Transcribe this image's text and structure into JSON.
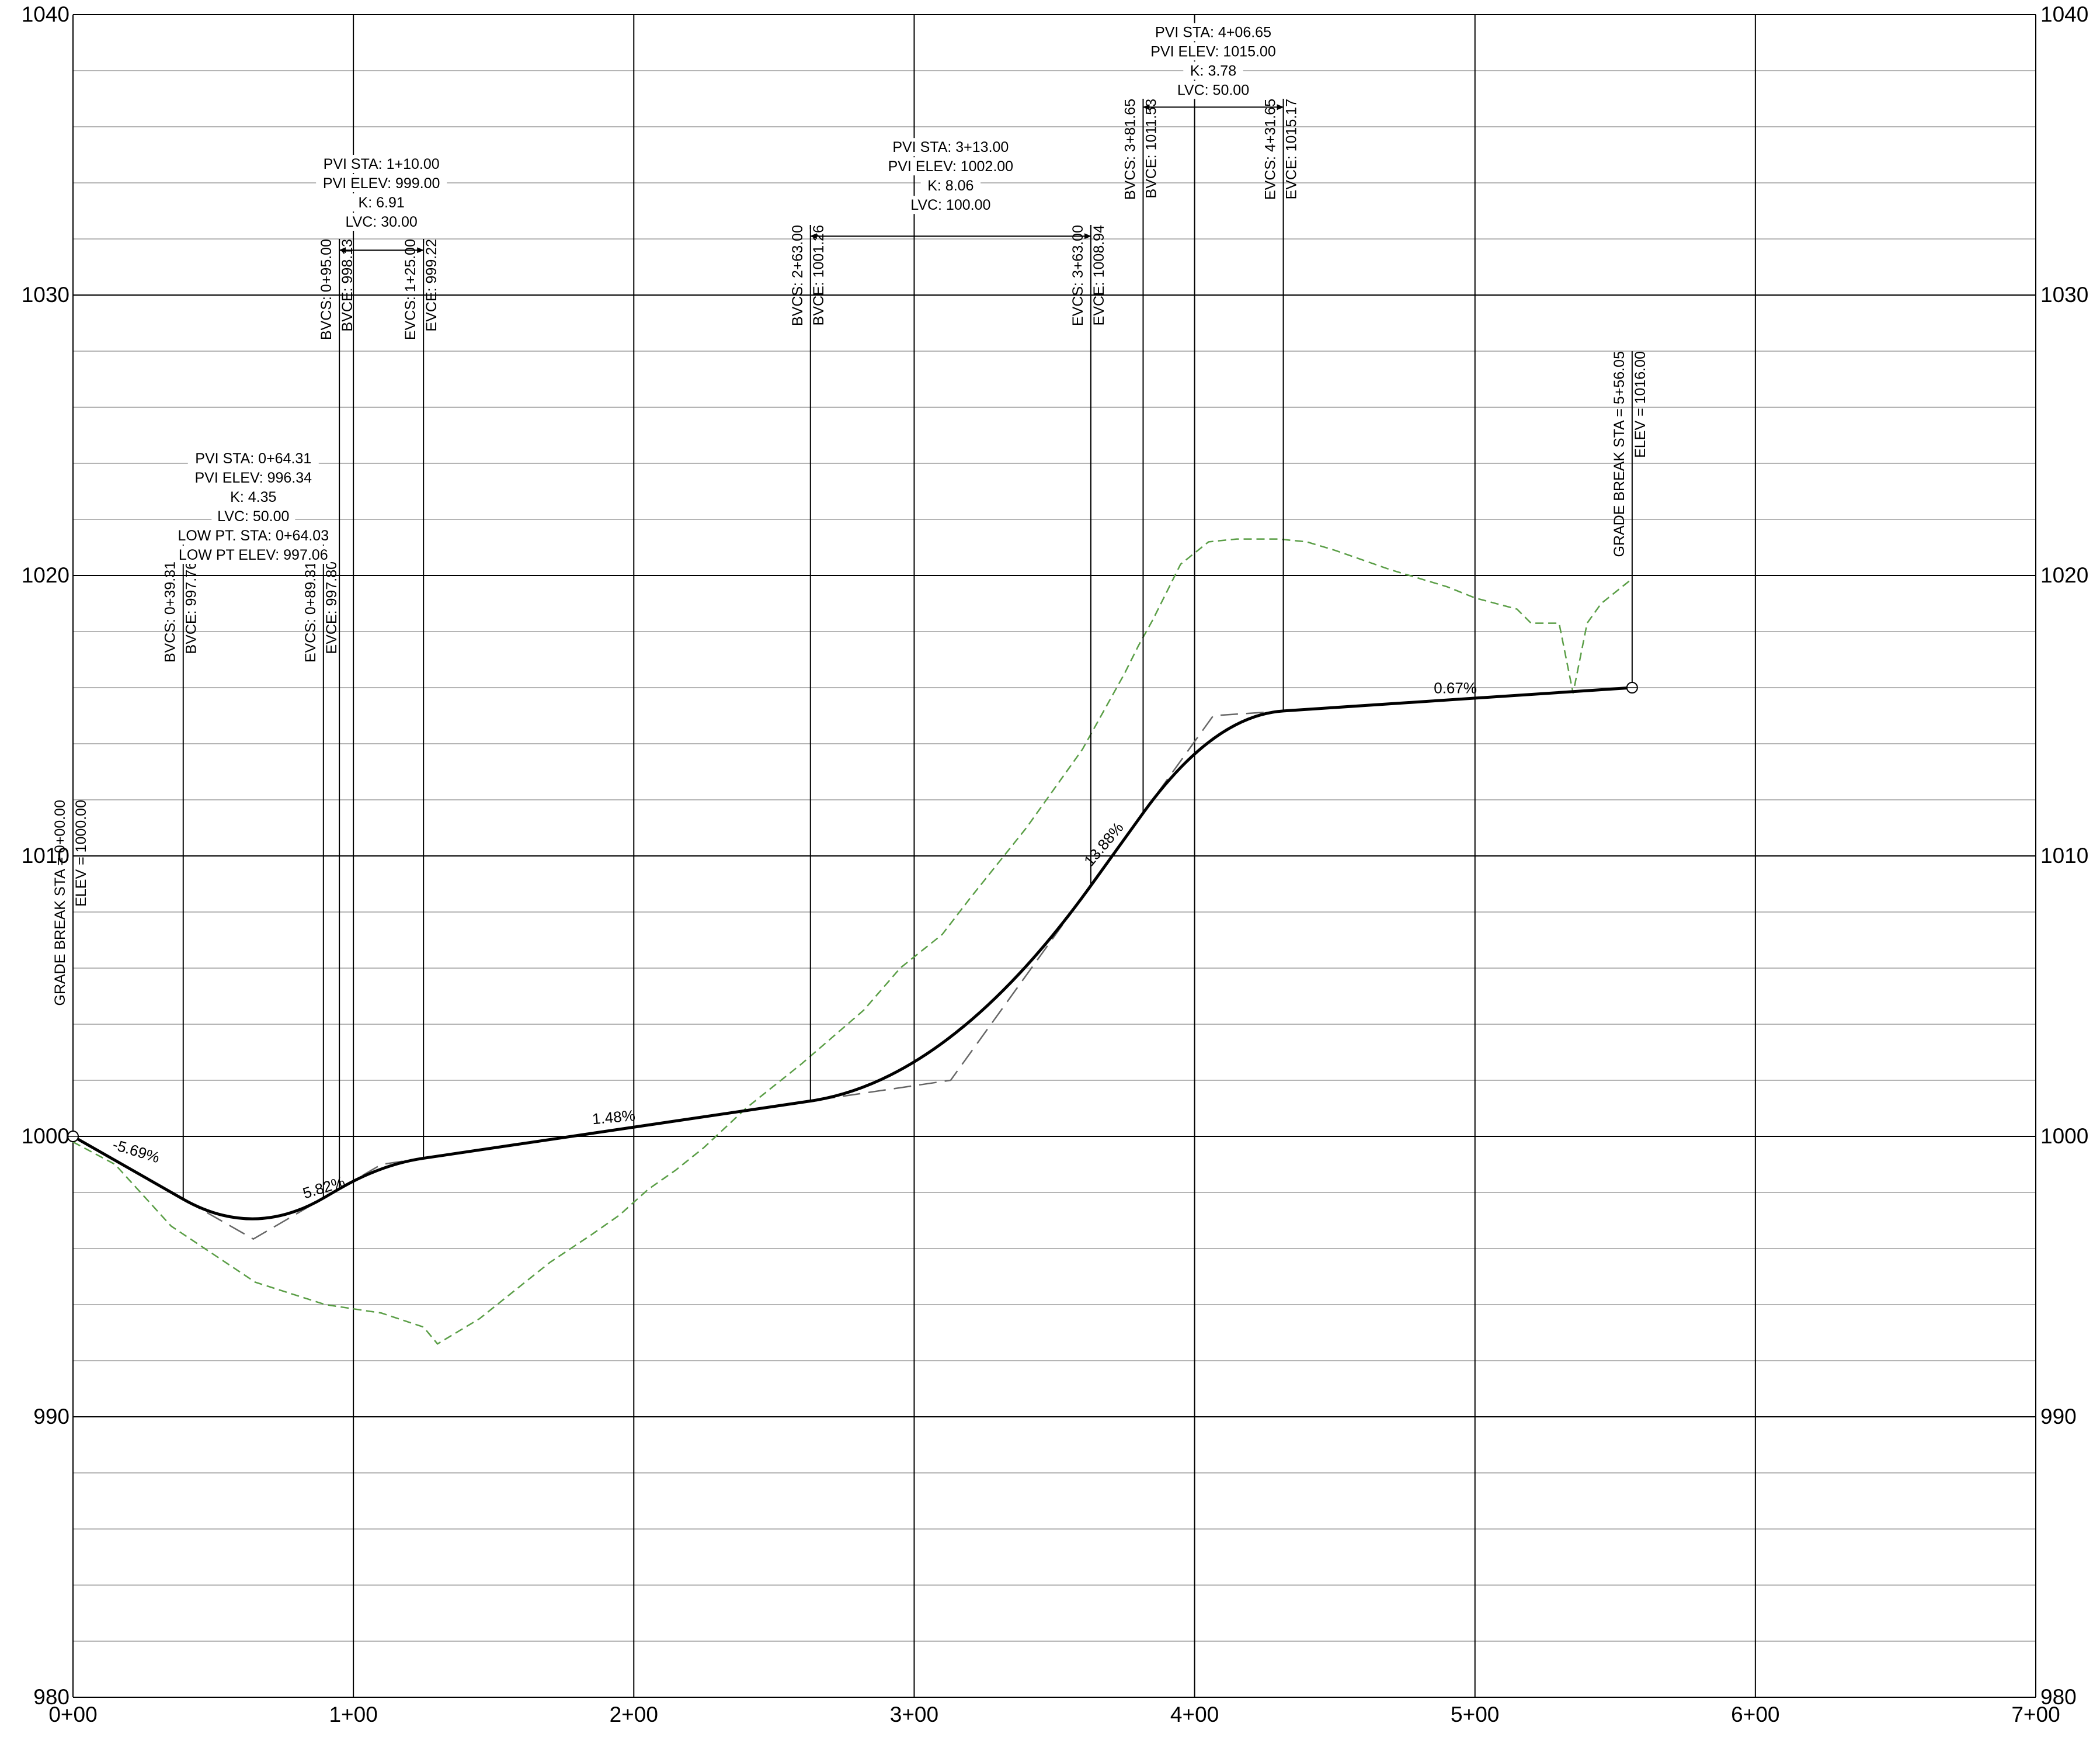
{
  "chart_data": {
    "type": "line",
    "title": "",
    "xlabel": "",
    "ylabel": "",
    "xlim": [
      0,
      700
    ],
    "ylim": [
      980,
      1040
    ],
    "grid": true,
    "x_ticks": [
      {
        "value": 0,
        "label": "0+00"
      },
      {
        "value": 100,
        "label": "1+00"
      },
      {
        "value": 200,
        "label": "2+00"
      },
      {
        "value": 300,
        "label": "3+00"
      },
      {
        "value": 400,
        "label": "4+00"
      },
      {
        "value": 500,
        "label": "5+00"
      },
      {
        "value": 600,
        "label": "6+00"
      },
      {
        "value": 700,
        "label": "7+00"
      }
    ],
    "y_ticks_left": [
      {
        "value": 980,
        "label": "980"
      },
      {
        "value": 990,
        "label": "990"
      },
      {
        "value": 1000,
        "label": "1000"
      },
      {
        "value": 1010,
        "label": "1010"
      },
      {
        "value": 1020,
        "label": "1020"
      },
      {
        "value": 1030,
        "label": "1030"
      },
      {
        "value": 1040,
        "label": "1040"
      }
    ],
    "y_ticks_right": [
      {
        "value": 980,
        "label": "980"
      },
      {
        "value": 990,
        "label": "990"
      },
      {
        "value": 1000,
        "label": "1000"
      },
      {
        "value": 1010,
        "label": "1010"
      },
      {
        "value": 1020,
        "label": "1020"
      },
      {
        "value": 1030,
        "label": "1030"
      },
      {
        "value": 1040,
        "label": "1040"
      }
    ],
    "minor_grid_step": 2,
    "colors": {
      "proposed": "#000000",
      "tangent": "#666666",
      "existing": "#5a9e46",
      "grid_major": "#000000",
      "grid_minor": "#b5b5b5"
    },
    "series": [
      {
        "key": "existing",
        "style": "dashed",
        "x": [
          0,
          15,
          35,
          65,
          90,
          110,
          125,
          130,
          145,
          155,
          170,
          185,
          195,
          205,
          215,
          225,
          240,
          260,
          282,
          295,
          310,
          320,
          340,
          360,
          375,
          380,
          385,
          395,
          405,
          415,
          420,
          430,
          440,
          450,
          470,
          490,
          500,
          515,
          520,
          530,
          535,
          540,
          545,
          555
        ],
        "y": [
          999.8,
          999.0,
          996.8,
          994.8,
          994.0,
          993.7,
          993.2,
          992.6,
          993.5,
          994.3,
          995.5,
          996.5,
          997.2,
          998.1,
          998.8,
          999.6,
          1001.0,
          1002.6,
          1004.5,
          1006.0,
          1007.2,
          1008.5,
          1011.0,
          1013.8,
          1016.5,
          1017.5,
          1018.4,
          1020.4,
          1021.2,
          1021.3,
          1021.3,
          1021.3,
          1021.2,
          1020.9,
          1020.2,
          1019.6,
          1019.2,
          1018.8,
          1018.3,
          1018.3,
          1015.8,
          1018.3,
          1019.0,
          1019.8
        ]
      },
      {
        "key": "tangent",
        "style": "dashed",
        "x": [
          0,
          64.31,
          110,
          313,
          406.65,
          556.05
        ],
        "y": [
          1000.0,
          996.34,
          999.0,
          1002.0,
          1015.0,
          1016.0
        ]
      },
      {
        "key": "proposed",
        "style": "solid",
        "segments": [
          {
            "kind": "line",
            "x0": 0,
            "y0": 1000.0,
            "x1": 39.31,
            "y1": 997.76
          },
          {
            "kind": "curve",
            "x0": 39.31,
            "y0": 997.76,
            "px": 64.31,
            "py": 996.34,
            "x1": 89.31,
            "y1": 997.8
          },
          {
            "kind": "line",
            "x0": 89.31,
            "y0": 997.8,
            "x1": 95.0,
            "y1": 998.13
          },
          {
            "kind": "curve",
            "x0": 95.0,
            "y0": 998.13,
            "px": 110.0,
            "py": 999.0,
            "x1": 125.0,
            "y1": 999.22
          },
          {
            "kind": "line",
            "x0": 125.0,
            "y0": 999.22,
            "x1": 263.0,
            "y1": 1001.26
          },
          {
            "kind": "curve",
            "x0": 263.0,
            "y0": 1001.26,
            "px": 313.0,
            "py": 1002.0,
            "x1": 363.0,
            "y1": 1008.94
          },
          {
            "kind": "line",
            "x0": 363.0,
            "y0": 1008.94,
            "x1": 381.65,
            "y1": 1011.53
          },
          {
            "kind": "curve",
            "x0": 381.65,
            "y0": 1011.53,
            "px": 406.65,
            "py": 1015.0,
            "x1": 431.65,
            "y1": 1015.17
          },
          {
            "kind": "line",
            "x0": 431.65,
            "y0": 1015.17,
            "x1": 556.05,
            "y1": 1016.0
          }
        ]
      }
    ],
    "grade_labels": [
      {
        "text": "-5.69%",
        "x": 22,
        "y": 999.3,
        "angle": 17
      },
      {
        "text": "5.82%",
        "x": 90,
        "y": 998.0,
        "angle": -17
      },
      {
        "text": "1.48%",
        "x": 193,
        "y": 1000.5,
        "angle": -5
      },
      {
        "text": "13.88%",
        "x": 369,
        "y": 1010.3,
        "angle": -50
      },
      {
        "text": "0.67%",
        "x": 493,
        "y": 1015.8,
        "angle": 0
      }
    ],
    "grade_breaks": [
      {
        "x": 0,
        "y": 1000.0,
        "lines": [
          "GRADE BREAK STA = 0+00.00",
          "ELEV =  1000.00"
        ],
        "top": 1012.0
      },
      {
        "x": 556.05,
        "y": 1016.0,
        "lines": [
          "GRADE BREAK STA = 5+56.05",
          "ELEV =  1016.00"
        ],
        "top": 1028.0
      }
    ],
    "vertical_curves": [
      {
        "pvi": [
          "PVI STA: 0+64.31",
          "PVI ELEV: 996.34",
          "K: 4.35",
          "LVC: 50.00",
          "LOW PT. STA: 0+64.03",
          "LOW PT ELEV: 997.06"
        ],
        "pvi_x": 64.31,
        "pvi_label_y": 1024.0,
        "bvc": {
          "x": 39.31,
          "y": 997.76,
          "lines": [
            "BVCS: 0+39.31",
            "BVCE: 997.76"
          ],
          "top": 1020.5
        },
        "evc": {
          "x": 89.31,
          "y": 997.8,
          "lines": [
            "EVCS: 0+89.31",
            "EVCE: 997.80"
          ],
          "top": 1020.5
        },
        "dim_y": 1021.2
      },
      {
        "pvi": [
          "PVI STA: 1+10.00",
          "PVI ELEV: 999.00",
          "K: 6.91",
          "LVC: 30.00"
        ],
        "pvi_x": 110,
        "pvi_label_y": 1034.5,
        "bvc": {
          "x": 95.0,
          "y": 998.13,
          "lines": [
            "BVCS: 0+95.00",
            "BVCE: 998.13"
          ],
          "top": 1032.0
        },
        "evc": {
          "x": 125.0,
          "y": 999.22,
          "lines": [
            "EVCS: 1+25.00",
            "EVCE: 999.22"
          ],
          "top": 1032.0
        },
        "dim_y": 1031.6
      },
      {
        "pvi": [
          "PVI STA: 3+13.00",
          "PVI ELEV: 1002.00",
          "K: 8.06",
          "LVC: 100.00"
        ],
        "pvi_x": 313,
        "pvi_label_y": 1035.1,
        "bvc": {
          "x": 263.0,
          "y": 1001.26,
          "lines": [
            "BVCS: 2+63.00",
            "BVCE: 1001.26"
          ],
          "top": 1032.5
        },
        "evc": {
          "x": 363.0,
          "y": 1008.94,
          "lines": [
            "EVCS: 3+63.00",
            "EVCE: 1008.94"
          ],
          "top": 1032.5
        },
        "dim_y": 1032.1
      },
      {
        "pvi": [
          "PVI STA: 4+06.65",
          "PVI ELEV: 1015.00",
          "K: 3.78",
          "LVC: 50.00"
        ],
        "pvi_x": 406.65,
        "pvi_label_y": 1039.2,
        "bvc": {
          "x": 381.65,
          "y": 1011.53,
          "lines": [
            "BVCS: 3+81.65",
            "BVCE: 1011.53"
          ],
          "top": 1037.0
        },
        "evc": {
          "x": 431.65,
          "y": 1015.17,
          "lines": [
            "EVCS: 4+31.65",
            "EVCE: 1015.17"
          ],
          "top": 1037.0
        },
        "dim_y": 1036.7
      }
    ]
  }
}
